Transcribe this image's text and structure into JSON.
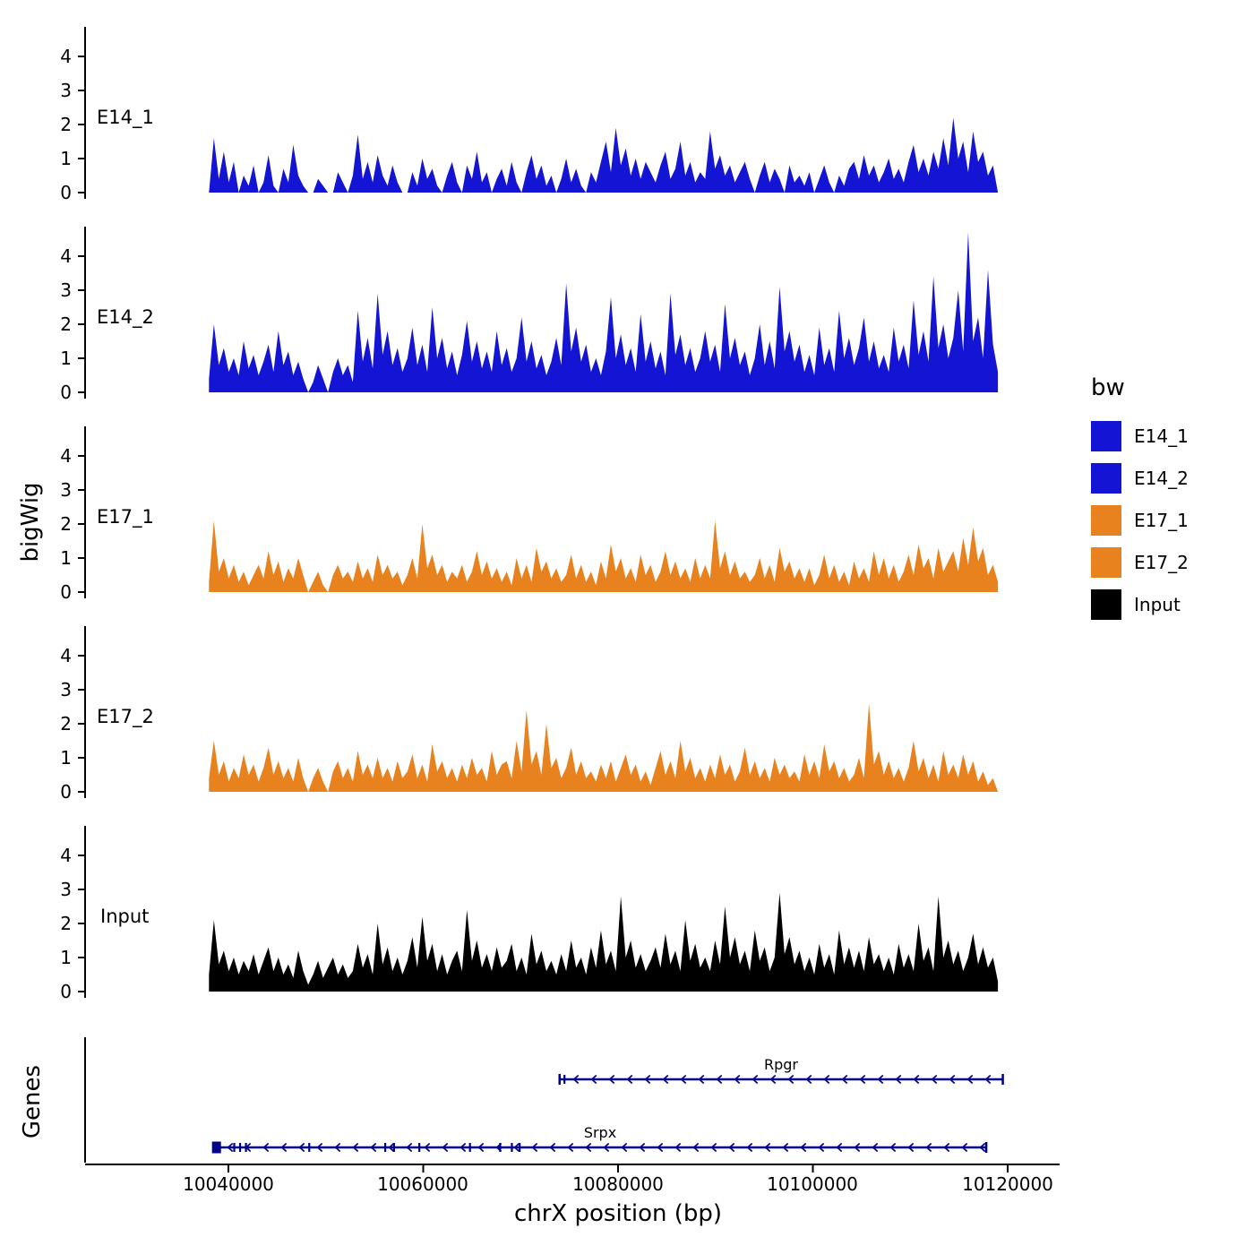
{
  "figure": {
    "y_axis_title": "bigWig",
    "genes_axis_title": "Genes",
    "x_axis_title": "chrX position (bp)",
    "x_tick_labels": [
      "10040000",
      "10060000",
      "10080000",
      "10100000",
      "10120000"
    ]
  },
  "legend": {
    "title": "bw",
    "entries": [
      {
        "label": "E14_1",
        "color": "#1414d4"
      },
      {
        "label": "E14_2",
        "color": "#1414d4"
      },
      {
        "label": "E17_1",
        "color": "#e8821e"
      },
      {
        "label": "E17_2",
        "color": "#e8821e"
      },
      {
        "label": "Input",
        "color": "#000000"
      }
    ]
  },
  "chart_data": {
    "type": "area",
    "title": "",
    "xlabel": "chrX position (bp)",
    "ylabel": "bigWig",
    "x_start": 10038000,
    "x_end": 10119000,
    "x_ticks": [
      10040000,
      10060000,
      10080000,
      10100000,
      10120000
    ],
    "ylim": [
      0,
      4.7
    ],
    "y_ticks": [
      "0",
      "1",
      "2",
      "3",
      "4"
    ],
    "grid": false,
    "legend_position": "right",
    "tracks": [
      {
        "name": "E14_1",
        "color": "#1414d4",
        "values": [
          0,
          1.6,
          0.4,
          1.2,
          0.3,
          0.9,
          0,
          0.5,
          0.2,
          0.8,
          0,
          0.3,
          1.1,
          0.2,
          0,
          0.7,
          0.3,
          1.4,
          0.5,
          0.2,
          0,
          0,
          0.4,
          0.2,
          0,
          0,
          0.6,
          0.3,
          0,
          0.5,
          1.7,
          0.4,
          0.9,
          0.3,
          1.1,
          0.5,
          0.2,
          0.8,
          0.3,
          0,
          0,
          0.6,
          0.2,
          1.0,
          0.4,
          0.7,
          0.2,
          0,
          0.5,
          0.9,
          0.3,
          0,
          0.8,
          0.4,
          1.2,
          0.3,
          0.6,
          0,
          0.4,
          0.7,
          0.2,
          0.9,
          0.3,
          0,
          0.6,
          1.1,
          0.4,
          0.8,
          0.2,
          0.5,
          0,
          0.4,
          1.0,
          0.3,
          0.7,
          0.2,
          0,
          0.6,
          0.3,
          0.9,
          1.5,
          0.6,
          1.9,
          0.8,
          1.3,
          0.5,
          1.0,
          0.4,
          0.9,
          0.6,
          0.3,
          0.8,
          1.2,
          0.4,
          0.7,
          1.5,
          0.5,
          0.9,
          0.3,
          0.6,
          0.4,
          1.8,
          0.7,
          1.1,
          0.5,
          0.8,
          0.3,
          0.6,
          0.9,
          0.4,
          0,
          0.5,
          0.9,
          0.3,
          0.7,
          0.4,
          0,
          0.8,
          0.3,
          0.5,
          0.2,
          0.6,
          0,
          0.4,
          0.8,
          0.3,
          0,
          0.5,
          0.2,
          0.7,
          0.9,
          0.4,
          1.1,
          0.5,
          0.8,
          0.3,
          0.6,
          1.0,
          0.4,
          0.7,
          0.3,
          0.9,
          1.4,
          0.6,
          1.0,
          0.5,
          1.2,
          0.7,
          1.6,
          0.8,
          2.2,
          1.0,
          1.5,
          0.6,
          1.8,
          0.9,
          1.2,
          0.5,
          0.8,
          0
        ]
      },
      {
        "name": "E14_2",
        "color": "#1414d4",
        "values": [
          0.4,
          2.0,
          0.8,
          1.3,
          0.6,
          1.0,
          0.5,
          1.5,
          0.7,
          1.1,
          0.5,
          0.9,
          1.4,
          0.6,
          1.8,
          0.8,
          1.2,
          0.5,
          0.9,
          0.4,
          0,
          0.3,
          0.8,
          0.4,
          0,
          0.6,
          1.0,
          0.5,
          0.8,
          0.3,
          2.4,
          0.9,
          1.6,
          0.7,
          2.9,
          1.1,
          1.8,
          0.8,
          1.3,
          0.6,
          1.0,
          1.9,
          0.8,
          1.4,
          0.6,
          2.5,
          1.0,
          1.6,
          0.7,
          1.2,
          0.5,
          1.1,
          2.1,
          0.9,
          1.5,
          0.7,
          1.2,
          0.6,
          1.8,
          0.8,
          1.3,
          0.6,
          1.0,
          2.2,
          0.9,
          1.5,
          0.7,
          1.1,
          0.5,
          0.9,
          1.6,
          0.8,
          3.2,
          1.2,
          1.9,
          0.9,
          1.4,
          0.6,
          1.0,
          0.5,
          1.2,
          2.8,
          1.0,
          1.7,
          0.8,
          1.3,
          0.6,
          2.3,
          0.9,
          1.5,
          0.7,
          1.2,
          0.5,
          2.9,
          1.1,
          1.7,
          0.8,
          1.3,
          0.6,
          1.0,
          1.8,
          0.9,
          1.4,
          0.6,
          2.6,
          1.0,
          1.6,
          0.8,
          1.2,
          0.5,
          1.0,
          2.0,
          0.8,
          1.5,
          0.7,
          3.1,
          1.2,
          1.8,
          0.9,
          1.4,
          0.6,
          1.1,
          0.5,
          1.9,
          0.8,
          1.3,
          0.6,
          2.4,
          1.0,
          1.6,
          0.8,
          1.3,
          2.2,
          0.9,
          1.5,
          0.7,
          1.1,
          0.6,
          1.9,
          0.9,
          1.4,
          0.7,
          2.7,
          1.1,
          1.8,
          0.9,
          3.4,
          1.3,
          2.0,
          1.0,
          1.6,
          3.0,
          1.2,
          4.7,
          1.5,
          2.2,
          1.0,
          3.6,
          1.4,
          0.6
        ]
      },
      {
        "name": "E17_1",
        "color": "#e8821e",
        "values": [
          0.3,
          2.1,
          0.6,
          1.0,
          0.4,
          0.8,
          0.3,
          0.6,
          0.2,
          0.5,
          0.8,
          0.4,
          1.2,
          0.5,
          0.9,
          0.3,
          0.7,
          0.4,
          1.0,
          0.5,
          0,
          0.3,
          0.6,
          0.2,
          0,
          0.5,
          0.8,
          0.4,
          0.6,
          0.3,
          0.9,
          0.4,
          0.7,
          0.3,
          1.1,
          0.5,
          0.8,
          0.4,
          0.6,
          0.2,
          0.5,
          1.0,
          0.4,
          2.0,
          0.7,
          1.1,
          0.5,
          0.8,
          0.3,
          0.6,
          0.4,
          0.8,
          0.3,
          0.6,
          1.2,
          0.5,
          0.9,
          0.4,
          0.7,
          0.3,
          0.6,
          0.2,
          1.0,
          0.4,
          0.8,
          0.3,
          1.3,
          0.6,
          0.9,
          0.4,
          0.7,
          0.3,
          0.5,
          1.1,
          0.4,
          0.8,
          0.3,
          0.6,
          0.2,
          0.9,
          0.4,
          1.4,
          0.6,
          1.0,
          0.4,
          0.7,
          0.3,
          1.1,
          0.5,
          0.8,
          0.3,
          0.6,
          1.2,
          0.5,
          0.9,
          0.4,
          0.7,
          0.3,
          1.0,
          0.4,
          0.8,
          0.4,
          2.1,
          0.7,
          1.2,
          0.5,
          0.9,
          0.4,
          0.6,
          0.3,
          0.5,
          1.0,
          0.4,
          0.8,
          0.3,
          1.3,
          0.6,
          0.9,
          0.4,
          0.7,
          0.3,
          0.7,
          0.2,
          0.5,
          1.1,
          0.4,
          0.8,
          0.3,
          0.6,
          0.2,
          0.9,
          0.4,
          0.7,
          0.3,
          1.2,
          0.5,
          1.0,
          0.4,
          0.8,
          0.3,
          0.6,
          1.1,
          0.5,
          1.4,
          0.7,
          1.0,
          0.4,
          1.3,
          0.6,
          0.9,
          1.2,
          0.6,
          1.6,
          0.8,
          1.9,
          0.9,
          1.3,
          0.5,
          0.8,
          0.3
        ]
      },
      {
        "name": "E17_2",
        "color": "#e8821e",
        "values": [
          0.4,
          1.5,
          0.5,
          0.9,
          0.3,
          0.7,
          0.4,
          1.1,
          0.5,
          0.8,
          0.3,
          0.7,
          1.3,
          0.5,
          0.9,
          0.4,
          0.7,
          0.3,
          1.0,
          0.4,
          0,
          0.4,
          0.7,
          0.3,
          0,
          0.6,
          0.9,
          0.4,
          0.7,
          0.3,
          1.2,
          0.5,
          0.8,
          0.4,
          1.0,
          0.4,
          0.7,
          0.3,
          0.9,
          0.4,
          0.6,
          1.1,
          0.4,
          0.8,
          0.3,
          1.4,
          0.6,
          0.9,
          0.4,
          0.7,
          0.3,
          0.8,
          0.4,
          1.0,
          0.5,
          0.7,
          0.3,
          1.2,
          0.5,
          0.8,
          0.9,
          0.4,
          1.5,
          0.6,
          2.4,
          0.8,
          1.2,
          0.5,
          2.0,
          0.7,
          1.0,
          0.4,
          0.7,
          1.3,
          0.5,
          0.9,
          0.4,
          0.6,
          0.3,
          0.8,
          0.4,
          0.9,
          0.3,
          0.7,
          1.1,
          0.5,
          0.8,
          0.3,
          0.6,
          0.2,
          0.7,
          1.2,
          0.5,
          0.9,
          0.4,
          1.5,
          0.6,
          1.0,
          0.4,
          0.7,
          0.3,
          0.8,
          0.4,
          1.1,
          0.5,
          0.8,
          0.3,
          0.6,
          1.3,
          0.5,
          0.9,
          0.4,
          0.7,
          0.3,
          1.0,
          0.5,
          0.8,
          0.4,
          0.6,
          0.3,
          1.1,
          0.5,
          0.9,
          0.4,
          1.4,
          0.6,
          0.9,
          0.4,
          0.7,
          0.3,
          0.5,
          1.0,
          0.4,
          2.6,
          0.8,
          1.2,
          0.5,
          0.9,
          0.4,
          0.7,
          0.3,
          0.7,
          1.5,
          0.6,
          1.0,
          0.4,
          0.8,
          0.3,
          1.2,
          0.5,
          0.8,
          0.4,
          1.1,
          0.5,
          0.9,
          0.3,
          0.6,
          0.2,
          0.4,
          0
        ]
      },
      {
        "name": "Input",
        "color": "#000000",
        "values": [
          0.5,
          2.1,
          0.8,
          1.2,
          0.6,
          1.0,
          0.5,
          0.9,
          0.6,
          1.1,
          0.5,
          0.9,
          1.3,
          0.6,
          1.0,
          0.5,
          0.8,
          0.4,
          1.2,
          0.6,
          0.2,
          0.5,
          0.9,
          0.4,
          0.7,
          1.0,
          0.5,
          0.8,
          0.4,
          0.6,
          1.4,
          0.7,
          1.1,
          0.5,
          2.0,
          0.8,
          1.3,
          0.6,
          1.0,
          0.5,
          0.9,
          1.6,
          0.7,
          2.2,
          0.9,
          1.4,
          0.6,
          1.1,
          0.5,
          0.9,
          1.2,
          0.6,
          2.4,
          0.9,
          1.5,
          0.7,
          1.1,
          0.6,
          1.3,
          0.7,
          0.9,
          1.4,
          0.6,
          1.0,
          0.5,
          1.7,
          0.8,
          1.2,
          0.6,
          0.9,
          0.5,
          1.1,
          0.6,
          1.5,
          0.7,
          1.0,
          0.5,
          1.3,
          0.7,
          1.8,
          0.8,
          1.2,
          0.6,
          2.8,
          1.0,
          1.5,
          0.7,
          1.1,
          0.6,
          0.9,
          1.3,
          0.7,
          1.7,
          0.8,
          1.2,
          0.6,
          2.1,
          0.9,
          1.4,
          0.7,
          1.0,
          0.6,
          1.5,
          0.8,
          2.5,
          1.0,
          1.6,
          0.8,
          1.2,
          0.6,
          1.8,
          0.9,
          1.3,
          0.6,
          1.0,
          2.9,
          1.1,
          1.6,
          0.8,
          1.2,
          0.6,
          1.0,
          0.5,
          1.4,
          0.7,
          1.1,
          0.5,
          1.8,
          0.8,
          1.3,
          0.7,
          1.2,
          0.6,
          1.6,
          0.8,
          1.1,
          0.6,
          1.0,
          0.5,
          1.4,
          0.7,
          1.1,
          0.6,
          2.0,
          0.9,
          1.3,
          0.6,
          2.8,
          1.0,
          1.5,
          0.8,
          1.2,
          0.6,
          1.0,
          1.7,
          0.8,
          1.3,
          0.7,
          1.0,
          0.3
        ]
      }
    ],
    "genes": [
      {
        "name": "Rpgr",
        "start": 10074000,
        "end": 10119500,
        "strand": "-",
        "color": "#00008b",
        "exon_marks": [
          10074500
        ],
        "start_box": false
      },
      {
        "name": "Srpx",
        "start": 10038500,
        "end": 10117800,
        "strand": "-",
        "color": "#00008b",
        "exon_marks": [
          10040600,
          10041200,
          10041800,
          10048300,
          10056100,
          10057000,
          10059600,
          10064800,
          10067900,
          10069100,
          10069900
        ],
        "start_box": true
      }
    ]
  }
}
